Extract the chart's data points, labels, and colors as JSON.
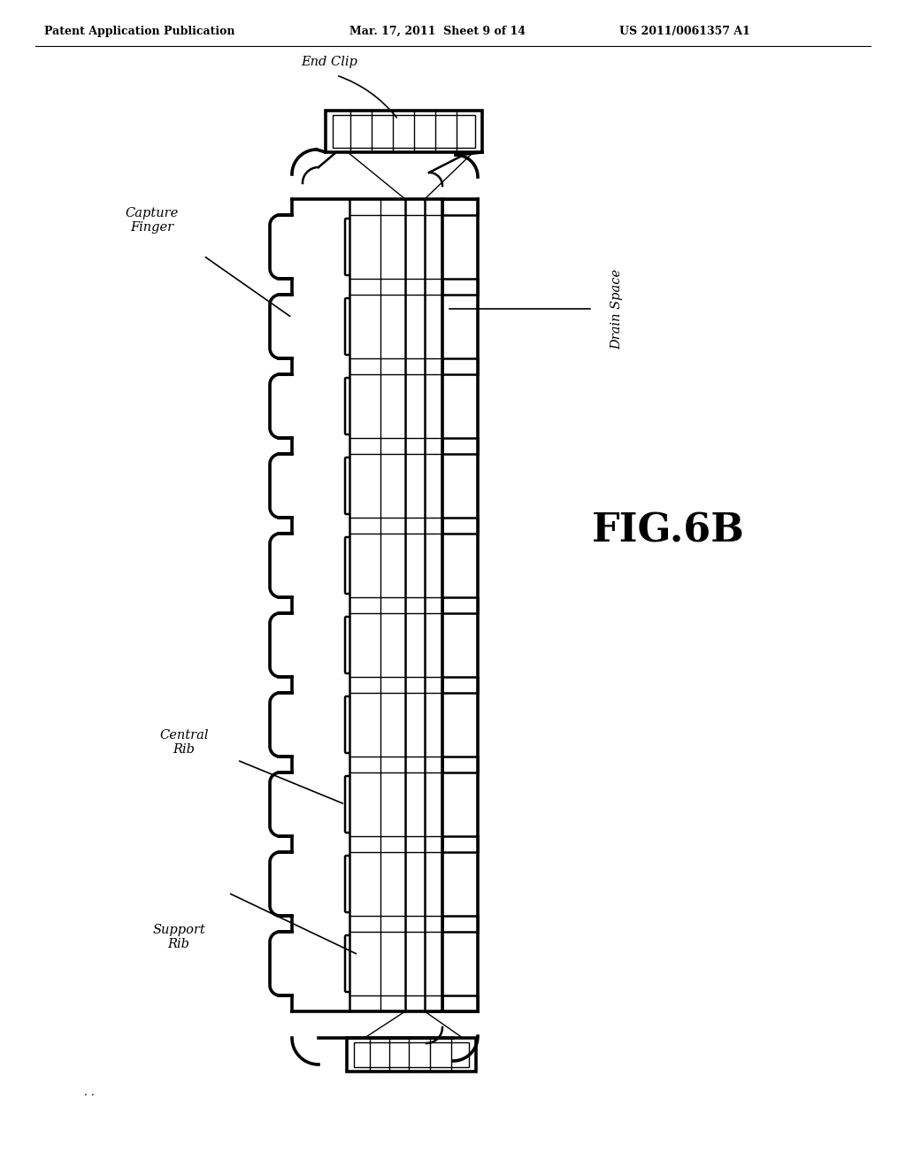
{
  "bg_color": "#ffffff",
  "header_left": "Patent Application Publication",
  "header_mid": "Mar. 17, 2011  Sheet 9 of 14",
  "header_right": "US 2011/0061357 A1",
  "fig_label": "FIG.6B",
  "label_end_clip": "End Clip",
  "label_capture_finger": "Capture\nFinger",
  "label_drain_space": "Drain Space",
  "label_central_rib": "Central\nRib",
  "label_support_rib": "Support\nRib",
  "footer_dots": ". .",
  "line_color": "#000000",
  "lw_thin": 1.0,
  "lw_med": 1.8,
  "lw_thick": 2.6
}
